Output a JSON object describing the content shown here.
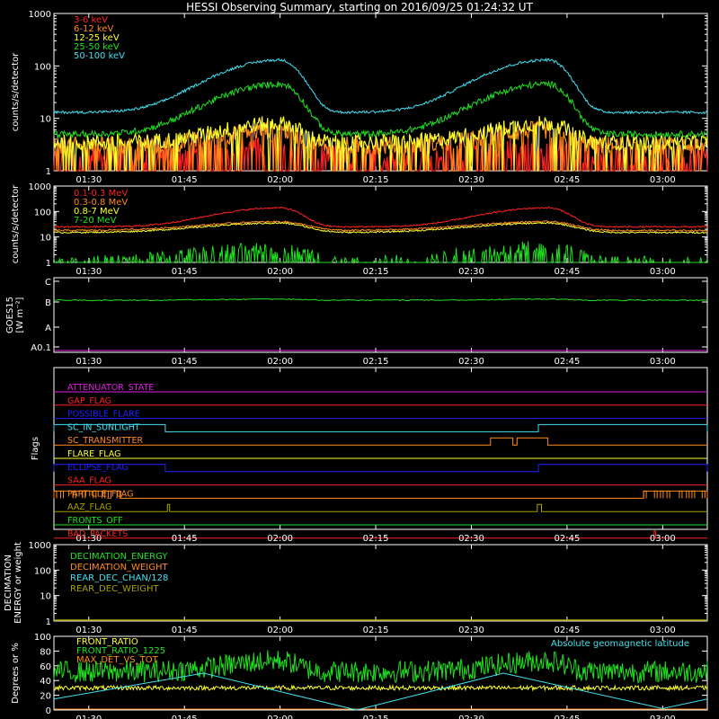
{
  "title": "HESSI Observing Summary, starting on 2016/09/25 01:24:32 UT",
  "time_ticks": [
    "01:30",
    "01:45",
    "02:00",
    "02:15",
    "02:30",
    "02:45",
    "03:00"
  ],
  "colors": {
    "red": "#ff2020",
    "orange": "#ff8a1c",
    "yellow": "#ffff30",
    "green": "#20e020",
    "cyan": "#40e0f0",
    "magenta": "#e020e0",
    "blue": "#2020ff",
    "olive": "#a8a000",
    "white": "#ffffff"
  },
  "panels": {
    "lo": {
      "ylabel": "counts/s/detector",
      "ytick_labels": [
        "1",
        "10",
        "100",
        "1000"
      ],
      "legend": [
        "3-6 keV",
        "6-12 keV",
        "12-25 keV",
        "25-50 keV",
        "50-100 keV"
      ]
    },
    "hi": {
      "ylabel": "counts/s/detector",
      "ytick_labels": [
        "1",
        "10",
        "100",
        "1000"
      ],
      "legend": [
        "0.1-0.3 MeV",
        "0.3-0.8 MeV",
        "0.8-7 MeV",
        "7-20 MeV"
      ]
    },
    "goes": {
      "ylabel_line1": "GOES15",
      "ylabel_line2": "[W m⁻²]",
      "ytick_labels": [
        "C",
        "B",
        "A",
        "A0.1"
      ]
    },
    "flags": {
      "ylabel": "Flags",
      "names": [
        "ATTENUATOR_STATE",
        "GAP_FLAG",
        "POSSIBLE_FLARE",
        "SC_IN_SUNLIGHT",
        "SC_TRANSMITTER",
        "FLARE_FLAG",
        "ECLIPSE_FLAG",
        "SAA_FLAG",
        "PARTICLE_FLAG",
        "AAZ_FLAG",
        "FRONTS_OFF",
        "BAD_PACKETS"
      ]
    },
    "dec": {
      "ylabel_line1": "DECIMATION",
      "ylabel_line2": "ENERGY or weight",
      "ytick_labels": [
        "1",
        "10",
        "100",
        "1000"
      ],
      "legend": [
        "DECIMATION_ENERGY",
        "DECIMATION_WEIGHT",
        "REAR_DEC_CHAN/128",
        "REAR_DEC_WEIGHT"
      ]
    },
    "ratio": {
      "ylabel": "Degrees or %",
      "ytick_labels": [
        "0",
        "20",
        "40",
        "60",
        "80",
        "100"
      ],
      "legend": [
        "FRONT_RATIO",
        "FRONT_RATIO_1225",
        "MAX_DET_VS_TOT"
      ],
      "annotation": "Absolute geomagnetic latitude"
    }
  },
  "chart_data": {
    "type": "line",
    "x_unit": "UT",
    "x_range": [
      "01:24:32",
      "03:07:00"
    ],
    "panels": [
      {
        "name": "count-rates-low",
        "ylabel": "counts/s/detector",
        "yscale": "log",
        "ylim": [
          1,
          1000
        ],
        "series": [
          {
            "name": "3-6 keV",
            "color": "#ff2020",
            "baseline": 2,
            "peaks": [
              3,
              3
            ]
          },
          {
            "name": "6-12 keV",
            "color": "#ff8a1c",
            "baseline": 3,
            "peaks": [
              6,
              6
            ]
          },
          {
            "name": "12-25 keV",
            "color": "#ffff30",
            "baseline": 3.5,
            "peaks": [
              8,
              7
            ]
          },
          {
            "name": "25-50 keV",
            "color": "#20e020",
            "baseline": 5,
            "peaks": [
              45,
              40
            ]
          },
          {
            "name": "50-100 keV",
            "color": "#40e0f0",
            "baseline": 13,
            "peaks": [
              130,
              130
            ]
          }
        ],
        "peak_times": [
          "02:00",
          "02:42"
        ]
      },
      {
        "name": "count-rates-high",
        "ylabel": "counts/s/detector",
        "yscale": "log",
        "ylim": [
          1,
          1000
        ],
        "series": [
          {
            "name": "0.1-0.3 MeV",
            "color": "#ff2020",
            "baseline": 25,
            "peaks": [
              140,
              130
            ]
          },
          {
            "name": "0.3-0.8 MeV",
            "color": "#ff8a1c",
            "baseline": 18,
            "peaks": [
              40,
              40
            ]
          },
          {
            "name": "0.8-7 MeV",
            "color": "#ffff30",
            "baseline": 15,
            "peaks": [
              35,
              35
            ]
          },
          {
            "name": "7-20 MeV",
            "color": "#20e020",
            "baseline": 1,
            "peaks": [
              4,
              4
            ]
          }
        ]
      },
      {
        "name": "goes",
        "ylabel": "GOES15 [W m-2]",
        "levels": [
          "A0.1",
          "A",
          "B",
          "C"
        ],
        "series": [
          {
            "name": "GOES long",
            "color": "#20e020",
            "value_level": "B"
          },
          {
            "name": "GOES short",
            "color": "#e020e0",
            "value_level": "A0.1"
          }
        ]
      },
      {
        "name": "flags",
        "ylabel": "Flags",
        "flags": [
          {
            "name": "ATTENUATOR_STATE",
            "color": "#e020e0",
            "high": []
          },
          {
            "name": "GAP_FLAG",
            "color": "#ff2020",
            "high": []
          },
          {
            "name": "POSSIBLE_FLARE",
            "color": "#2020ff",
            "high": []
          },
          {
            "name": "SC_IN_SUNLIGHT",
            "color": "#40e0f0",
            "high": [
              [
                "01:24:32",
                "01:42"
              ],
              [
                "02:40:30",
                "03:07"
              ]
            ]
          },
          {
            "name": "SC_TRANSMITTER",
            "color": "#ff8a1c",
            "high": [
              [
                "02:33",
                "02:36:30"
              ],
              [
                "02:37:10",
                "02:42"
              ]
            ]
          },
          {
            "name": "FLARE_FLAG",
            "color": "#ffff30",
            "high": []
          },
          {
            "name": "ECLIPSE_FLAG",
            "color": "#2020ff",
            "high": [
              [
                "01:24:32",
                "01:42"
              ],
              [
                "02:40:30",
                "03:07"
              ]
            ]
          },
          {
            "name": "SAA_FLAG",
            "color": "#ff2020",
            "high": []
          },
          {
            "name": "PARTICLE_FLAG",
            "color": "#ff8a1c",
            "high": [
              [
                "01:24:32",
                "01:35"
              ],
              [
                "02:57",
                "03:07"
              ]
            ]
          },
          {
            "name": "AAZ_FLAG",
            "color": "#a8a000",
            "high": [
              [
                "01:42:20",
                "01:42:40"
              ],
              [
                "02:40:20",
                "02:41:00"
              ]
            ]
          },
          {
            "name": "FRONTS_OFF",
            "color": "#20e020",
            "high": []
          },
          {
            "name": "BAD_PACKETS",
            "color": "#ff2020",
            "high": [
              [
                "02:58:40",
                "02:58:55"
              ]
            ]
          }
        ]
      },
      {
        "name": "decimation",
        "ylabel": "DECIMATION ENERGY or weight",
        "yscale": "log",
        "ylim": [
          1,
          1000
        ],
        "series": [
          {
            "name": "DECIMATION_ENERGY",
            "color": "#20e020",
            "value": 1
          },
          {
            "name": "DECIMATION_WEIGHT",
            "color": "#ff8a1c",
            "value": 1
          },
          {
            "name": "REAR_DEC_CHAN/128",
            "color": "#40e0f0",
            "value": 1
          },
          {
            "name": "REAR_DEC_WEIGHT",
            "color": "#a8a000",
            "value": 1
          }
        ]
      },
      {
        "name": "ratios",
        "ylabel": "Degrees or %",
        "ylim": [
          0,
          100
        ],
        "series": [
          {
            "name": "FRONT_RATIO",
            "color": "#ffff30",
            "mean": 30
          },
          {
            "name": "FRONT_RATIO_1225",
            "color": "#20e020",
            "mean": 55
          },
          {
            "name": "MAX_DET_VS_TOT",
            "color": "#ff8a1c",
            "mean": 0
          },
          {
            "name": "Absolute geomagnetic latitude",
            "color": "#40e0f0",
            "x": [
              "01:24:32",
              "01:48",
              "02:12",
              "02:35",
              "03:00",
              "03:07"
            ],
            "values": [
              15,
              50,
              0,
              50,
              2,
              15
            ]
          }
        ]
      }
    ]
  }
}
